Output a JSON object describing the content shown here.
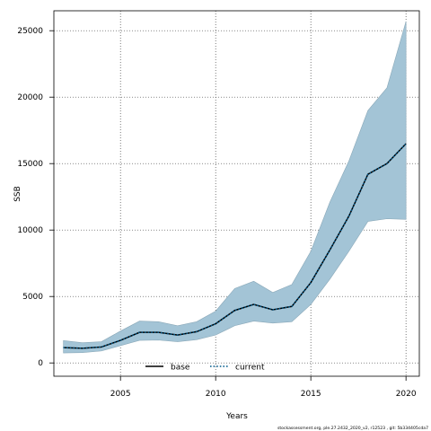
{
  "chart_data": {
    "type": "line",
    "title": "",
    "xlabel": "Years",
    "ylabel": "SSB",
    "xlim": [
      2001.5,
      2020.7
    ],
    "ylim": [
      -1000,
      26500
    ],
    "x_ticks": [
      2005,
      2010,
      2015,
      2020
    ],
    "y_ticks": [
      0,
      5000,
      10000,
      15000,
      20000,
      25000
    ],
    "x_tick_labels": [
      "2005",
      "2010",
      "2015",
      "2020"
    ],
    "y_tick_labels": [
      "0",
      "5000",
      "10000",
      "15000",
      "20000",
      "25000"
    ],
    "grid": true,
    "legend_position": "bottom-center",
    "x": [
      2002,
      2003,
      2004,
      2005,
      2006,
      2007,
      2008,
      2009,
      2010,
      2011,
      2012,
      2013,
      2014,
      2015,
      2016,
      2017,
      2018,
      2019,
      2020
    ],
    "band": {
      "lower": [
        750,
        780,
        900,
        1300,
        1700,
        1720,
        1600,
        1750,
        2100,
        2800,
        3150,
        3000,
        3100,
        4400,
        6300,
        8400,
        10650,
        10850,
        10800
      ],
      "upper": [
        1680,
        1520,
        1600,
        2400,
        3150,
        3100,
        2800,
        3100,
        3900,
        5600,
        6150,
        5300,
        5900,
        8400,
        12100,
        15200,
        19000,
        20700,
        25700
      ]
    },
    "series": [
      {
        "name": "base",
        "style": "solid",
        "color": "#000000",
        "values": [
          1150,
          1100,
          1200,
          1700,
          2300,
          2300,
          2100,
          2350,
          2950,
          3950,
          4400,
          4000,
          4250,
          6050,
          8500,
          11050,
          14200,
          15000,
          16500
        ]
      },
      {
        "name": "current",
        "style": "dotted",
        "color": "#005a8c",
        "values": [
          1150,
          1100,
          1200,
          1700,
          2300,
          2300,
          2100,
          2350,
          2950,
          3950,
          4400,
          4000,
          4250,
          6050,
          8500,
          11050,
          14200,
          15000,
          16500
        ]
      }
    ],
    "band_color": "#a3c4d6"
  },
  "legend": {
    "items": [
      {
        "label": "base"
      },
      {
        "label": "current"
      }
    ]
  },
  "footer": {
    "text": "stockassessment.org, ple.27.2432_2020_v2, r12523 , git: 5b334405cda7"
  }
}
